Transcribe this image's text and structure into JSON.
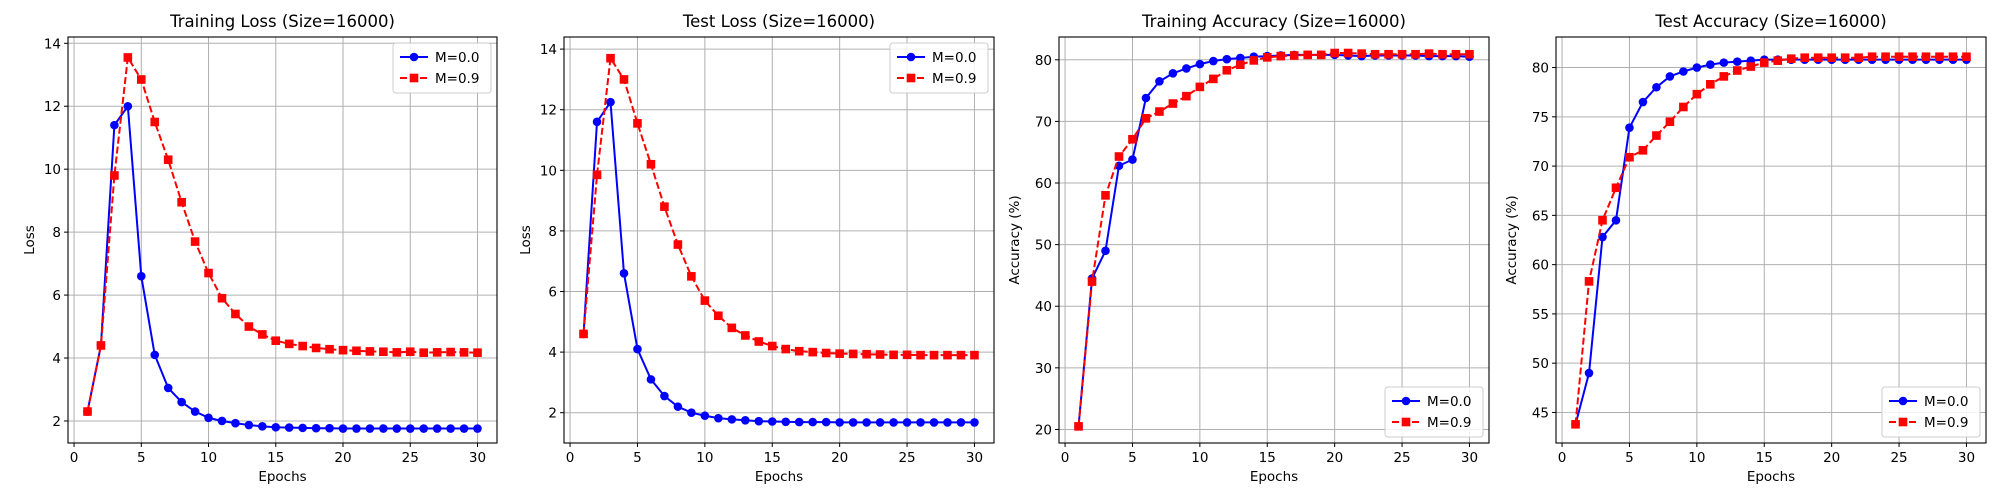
{
  "chart_data": [
    {
      "type": "line",
      "title": "Training Loss (Size=16000)",
      "xlabel": "Epochs",
      "ylabel": "Loss",
      "xlim": [
        -0.45,
        31.45
      ],
      "ylim": [
        1.3,
        14.2
      ],
      "xticks": [
        0,
        5,
        10,
        15,
        20,
        25,
        30
      ],
      "yticks": [
        2,
        4,
        6,
        8,
        10,
        12,
        14
      ],
      "grid": true,
      "legend_position": "top-right",
      "x": [
        1,
        2,
        3,
        4,
        5,
        6,
        7,
        8,
        9,
        10,
        11,
        12,
        13,
        14,
        15,
        16,
        17,
        18,
        19,
        20,
        21,
        22,
        23,
        24,
        25,
        26,
        27,
        28,
        29,
        30
      ],
      "series": [
        {
          "name": "M=0.0",
          "color": "#0000ff",
          "marker": "circle",
          "linestyle": "solid",
          "values": [
            2.3,
            4.4,
            11.4,
            12.0,
            6.6,
            4.1,
            3.05,
            2.6,
            2.3,
            2.1,
            2.0,
            1.93,
            1.87,
            1.83,
            1.8,
            1.79,
            1.78,
            1.77,
            1.77,
            1.76,
            1.76,
            1.76,
            1.76,
            1.76,
            1.76,
            1.76,
            1.76,
            1.76,
            1.76,
            1.76
          ]
        },
        {
          "name": "M=0.9",
          "color": "#ff0000",
          "marker": "square",
          "linestyle": "dashed",
          "values": [
            2.3,
            4.4,
            9.8,
            13.55,
            12.85,
            11.5,
            10.3,
            8.95,
            7.7,
            6.7,
            5.9,
            5.4,
            5.0,
            4.75,
            4.55,
            4.45,
            4.38,
            4.32,
            4.28,
            4.25,
            4.23,
            4.21,
            4.2,
            4.18,
            4.2,
            4.17,
            4.18,
            4.19,
            4.18,
            4.17
          ]
        }
      ]
    },
    {
      "type": "line",
      "title": "Test Loss (Size=16000)",
      "xlabel": "Epochs",
      "ylabel": "Loss",
      "xlim": [
        -0.45,
        31.45
      ],
      "ylim": [
        1.0,
        14.4
      ],
      "xticks": [
        0,
        5,
        10,
        15,
        20,
        25,
        30
      ],
      "yticks": [
        2,
        4,
        6,
        8,
        10,
        12,
        14
      ],
      "grid": true,
      "legend_position": "top-right",
      "x": [
        1,
        2,
        3,
        4,
        5,
        6,
        7,
        8,
        9,
        10,
        11,
        12,
        13,
        14,
        15,
        16,
        17,
        18,
        19,
        20,
        21,
        22,
        23,
        24,
        25,
        26,
        27,
        28,
        29,
        30
      ],
      "series": [
        {
          "name": "M=0.0",
          "color": "#0000ff",
          "marker": "circle",
          "linestyle": "solid",
          "values": [
            4.6,
            11.6,
            12.25,
            6.6,
            4.1,
            3.1,
            2.55,
            2.2,
            2.0,
            1.9,
            1.82,
            1.78,
            1.75,
            1.72,
            1.71,
            1.7,
            1.69,
            1.69,
            1.69,
            1.68,
            1.68,
            1.68,
            1.68,
            1.68,
            1.68,
            1.68,
            1.68,
            1.68,
            1.68,
            1.68
          ]
        },
        {
          "name": "M=0.9",
          "color": "#ff0000",
          "marker": "square",
          "linestyle": "dashed",
          "values": [
            4.6,
            9.85,
            13.7,
            13.0,
            11.55,
            10.2,
            8.8,
            7.55,
            6.5,
            5.7,
            5.2,
            4.8,
            4.55,
            4.35,
            4.2,
            4.1,
            4.03,
            4.0,
            3.97,
            3.95,
            3.94,
            3.93,
            3.92,
            3.91,
            3.91,
            3.9,
            3.9,
            3.9,
            3.9,
            3.9
          ]
        }
      ]
    },
    {
      "type": "line",
      "title": "Training Accuracy (Size=16000)",
      "xlabel": "Epochs",
      "ylabel": "Accuracy (%)",
      "xlim": [
        -0.45,
        31.45
      ],
      "ylim": [
        17.8,
        83.7
      ],
      "xticks": [
        0,
        5,
        10,
        15,
        20,
        25,
        30
      ],
      "yticks": [
        20,
        30,
        40,
        50,
        60,
        70,
        80
      ],
      "grid": true,
      "legend_position": "bottom-right",
      "x": [
        1,
        2,
        3,
        4,
        5,
        6,
        7,
        8,
        9,
        10,
        11,
        12,
        13,
        14,
        15,
        16,
        17,
        18,
        19,
        20,
        21,
        22,
        23,
        24,
        25,
        26,
        27,
        28,
        29,
        30
      ],
      "series": [
        {
          "name": "M=0.0",
          "color": "#0000ff",
          "marker": "circle",
          "linestyle": "solid",
          "values": [
            20.5,
            44.5,
            49.0,
            62.8,
            63.8,
            73.8,
            76.5,
            77.8,
            78.6,
            79.3,
            79.8,
            80.1,
            80.3,
            80.5,
            80.6,
            80.7,
            80.8,
            80.8,
            80.8,
            80.8,
            80.7,
            80.6,
            80.7,
            80.7,
            80.7,
            80.7,
            80.6,
            80.6,
            80.6,
            80.5
          ]
        },
        {
          "name": "M=0.9",
          "color": "#ff0000",
          "marker": "square",
          "linestyle": "dashed",
          "values": [
            20.5,
            44.0,
            58.0,
            64.3,
            67.1,
            70.5,
            71.6,
            72.9,
            74.1,
            75.6,
            76.9,
            78.3,
            79.2,
            79.9,
            80.4,
            80.6,
            80.7,
            80.8,
            80.8,
            81.1,
            81.1,
            81.0,
            80.9,
            80.9,
            80.9,
            80.9,
            81.0,
            80.9,
            80.9,
            80.9
          ]
        }
      ]
    },
    {
      "type": "line",
      "title": "Test Accuracy (Size=16000)",
      "xlabel": "Epochs",
      "ylabel": "Accuracy (%)",
      "xlim": [
        -0.45,
        31.45
      ],
      "ylim": [
        41.9,
        83.1
      ],
      "xticks": [
        0,
        5,
        10,
        15,
        20,
        25,
        30
      ],
      "yticks": [
        45,
        50,
        55,
        60,
        65,
        70,
        75,
        80
      ],
      "grid": true,
      "legend_position": "bottom-right",
      "x": [
        1,
        2,
        3,
        4,
        5,
        6,
        7,
        8,
        9,
        10,
        11,
        12,
        13,
        14,
        15,
        16,
        17,
        18,
        19,
        20,
        21,
        22,
        23,
        24,
        25,
        26,
        27,
        28,
        29,
        30
      ],
      "series": [
        {
          "name": "M=0.0",
          "color": "#0000ff",
          "marker": "circle",
          "linestyle": "solid",
          "values": [
            43.8,
            49.0,
            62.8,
            64.5,
            73.9,
            76.5,
            78.0,
            79.1,
            79.6,
            80.0,
            80.3,
            80.5,
            80.6,
            80.7,
            80.8,
            80.8,
            80.8,
            80.8,
            80.8,
            80.8,
            80.8,
            80.8,
            80.8,
            80.8,
            80.8,
            80.8,
            80.8,
            80.8,
            80.8,
            80.8
          ]
        },
        {
          "name": "M=0.9",
          "color": "#ff0000",
          "marker": "square",
          "linestyle": "dashed",
          "values": [
            43.8,
            58.3,
            64.5,
            67.8,
            70.9,
            71.6,
            73.1,
            74.5,
            76.0,
            77.3,
            78.3,
            79.1,
            79.7,
            80.1,
            80.5,
            80.7,
            80.9,
            81.0,
            81.0,
            81.0,
            81.0,
            81.0,
            81.1,
            81.1,
            81.1,
            81.1,
            81.1,
            81.1,
            81.1,
            81.1
          ]
        }
      ]
    }
  ]
}
